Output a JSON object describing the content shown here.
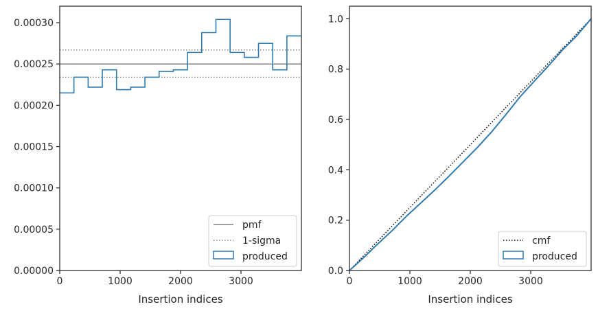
{
  "chart_data": [
    {
      "type": "step",
      "xlabel": "Insertion indices",
      "ylabel": "",
      "xlim": [
        0,
        4000
      ],
      "ylim": [
        0,
        0.00032
      ],
      "xticks": [
        0,
        1000,
        2000,
        3000
      ],
      "xtick_labels": [
        "0",
        "1000",
        "2000",
        "3000"
      ],
      "yticks": [
        0,
        5e-05,
        0.0001,
        0.00015,
        0.0002,
        0.00025,
        0.0003
      ],
      "ytick_labels": [
        "0.00000",
        "0.00005",
        "0.00010",
        "0.00015",
        "0.00020",
        "0.00025",
        "0.00030"
      ],
      "pmf": 0.00025,
      "sigma_band": [
        0.000234,
        0.000267
      ],
      "bin_edges": [
        0,
        235,
        470,
        705,
        940,
        1175,
        1410,
        1645,
        1880,
        2115,
        2350,
        2585,
        2820,
        3055,
        3290,
        3525,
        3760,
        4000
      ],
      "produced": [
        0.000215,
        0.000234,
        0.000222,
        0.000243,
        0.000219,
        0.000222,
        0.000234,
        0.000241,
        0.000243,
        0.000264,
        0.000288,
        0.000304,
        0.000264,
        0.000258,
        0.000275,
        0.000243,
        0.000284
      ],
      "legend": {
        "position": "lower-right",
        "entries": [
          "pmf",
          "1-sigma",
          "produced"
        ]
      },
      "colors": {
        "pmf": "#808080",
        "sigma": "#808080",
        "produced": "#2e7bb1"
      }
    },
    {
      "type": "line",
      "xlabel": "Insertion indices",
      "ylabel": "",
      "xlim": [
        0,
        4000
      ],
      "ylim": [
        0,
        1.05
      ],
      "xticks": [
        0,
        1000,
        2000,
        3000
      ],
      "xtick_labels": [
        "0",
        "1000",
        "2000",
        "3000"
      ],
      "yticks": [
        0,
        0.2,
        0.4,
        0.6,
        0.8,
        1.0
      ],
      "ytick_labels": [
        "0.0",
        "0.2",
        "0.4",
        "0.6",
        "0.8",
        "1.0"
      ],
      "cmf": {
        "x": [
          0,
          4000
        ],
        "y": [
          0,
          1.0
        ]
      },
      "produced": {
        "x": [
          0,
          235,
          470,
          705,
          940,
          1175,
          1410,
          1645,
          1880,
          2115,
          2350,
          2585,
          2820,
          3055,
          3290,
          3525,
          3760,
          4000
        ],
        "y": [
          0,
          0.051,
          0.106,
          0.158,
          0.215,
          0.267,
          0.319,
          0.374,
          0.431,
          0.488,
          0.55,
          0.618,
          0.689,
          0.751,
          0.812,
          0.876,
          0.932,
          1.0
        ]
      },
      "legend": {
        "position": "lower-right",
        "entries": [
          "cmf",
          "produced"
        ]
      },
      "colors": {
        "cmf": "#000000",
        "produced": "#2e7bb1"
      }
    }
  ]
}
